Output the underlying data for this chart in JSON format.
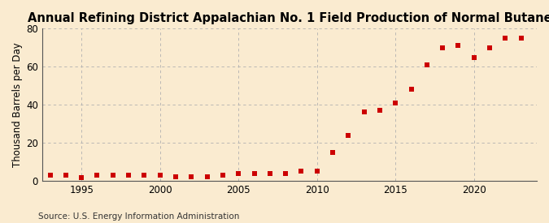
{
  "title": "Annual Refining District Appalachian No. 1 Field Production of Normal Butane",
  "ylabel": "Thousand Barrels per Day",
  "source": "Source: U.S. Energy Information Administration",
  "background_color": "#faebd0",
  "marker_color": "#cc0000",
  "years": [
    1993,
    1994,
    1995,
    1996,
    1997,
    1998,
    1999,
    2000,
    2001,
    2002,
    2003,
    2004,
    2005,
    2006,
    2007,
    2008,
    2009,
    2010,
    2011,
    2012,
    2013,
    2014,
    2015,
    2016,
    2017,
    2018,
    2019,
    2020,
    2021,
    2022,
    2023
  ],
  "values": [
    3,
    3,
    1.5,
    3,
    3,
    3,
    3,
    3,
    2,
    2,
    2,
    3,
    4,
    4,
    4,
    4,
    5,
    5,
    15,
    24,
    36,
    37,
    41,
    48,
    61,
    70,
    71,
    65,
    70,
    75,
    75
  ],
  "xlim": [
    1992.5,
    2024
  ],
  "ylim": [
    0,
    80
  ],
  "yticks": [
    0,
    20,
    40,
    60,
    80
  ],
  "xticks": [
    1995,
    2000,
    2005,
    2010,
    2015,
    2020
  ],
  "title_fontsize": 10.5,
  "label_fontsize": 8.5,
  "tick_fontsize": 8.5,
  "source_fontsize": 7.5,
  "marker_size": 14
}
